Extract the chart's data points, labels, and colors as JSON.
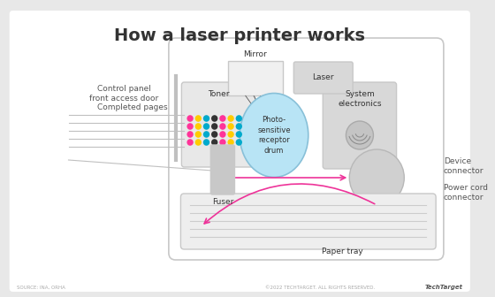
{
  "title": "How a laser printer works",
  "bg_color": "#e8e8e8",
  "white_bg": "#ffffff",
  "panel_bg": "#f5f5f5",
  "title_fontsize": 14,
  "label_fontsize": 6.5,
  "small_fontsize": 5,
  "dark_text": "#333333",
  "label_color": "#555555",
  "gray_edge": "#c8c8c8",
  "pink_line_color": "#ee3399",
  "source_text": "SOURCE: INA, ORHA",
  "copyright_text": "©2022 TECHTARGET. ALL RIGHTS RESERVED.",
  "techtarget_text": "TechTarget",
  "cmyk_colors": [
    "#ff3399",
    "#ffcc00",
    "#00aacc",
    "#333333",
    "#ff3399",
    "#ffcc00",
    "#00aacc",
    "#ff3399",
    "#ffcc00",
    "#00aacc",
    "#333333",
    "#ff3399",
    "#ffcc00",
    "#00aacc",
    "#ff3399",
    "#ffcc00",
    "#00aacc",
    "#333333",
    "#ff3399",
    "#ffcc00",
    "#00aacc",
    "#ff3399",
    "#ffcc00",
    "#00aacc",
    "#333333",
    "#ff3399",
    "#ffcc00",
    "#00aacc",
    "#ff3399",
    "#ffcc00"
  ]
}
